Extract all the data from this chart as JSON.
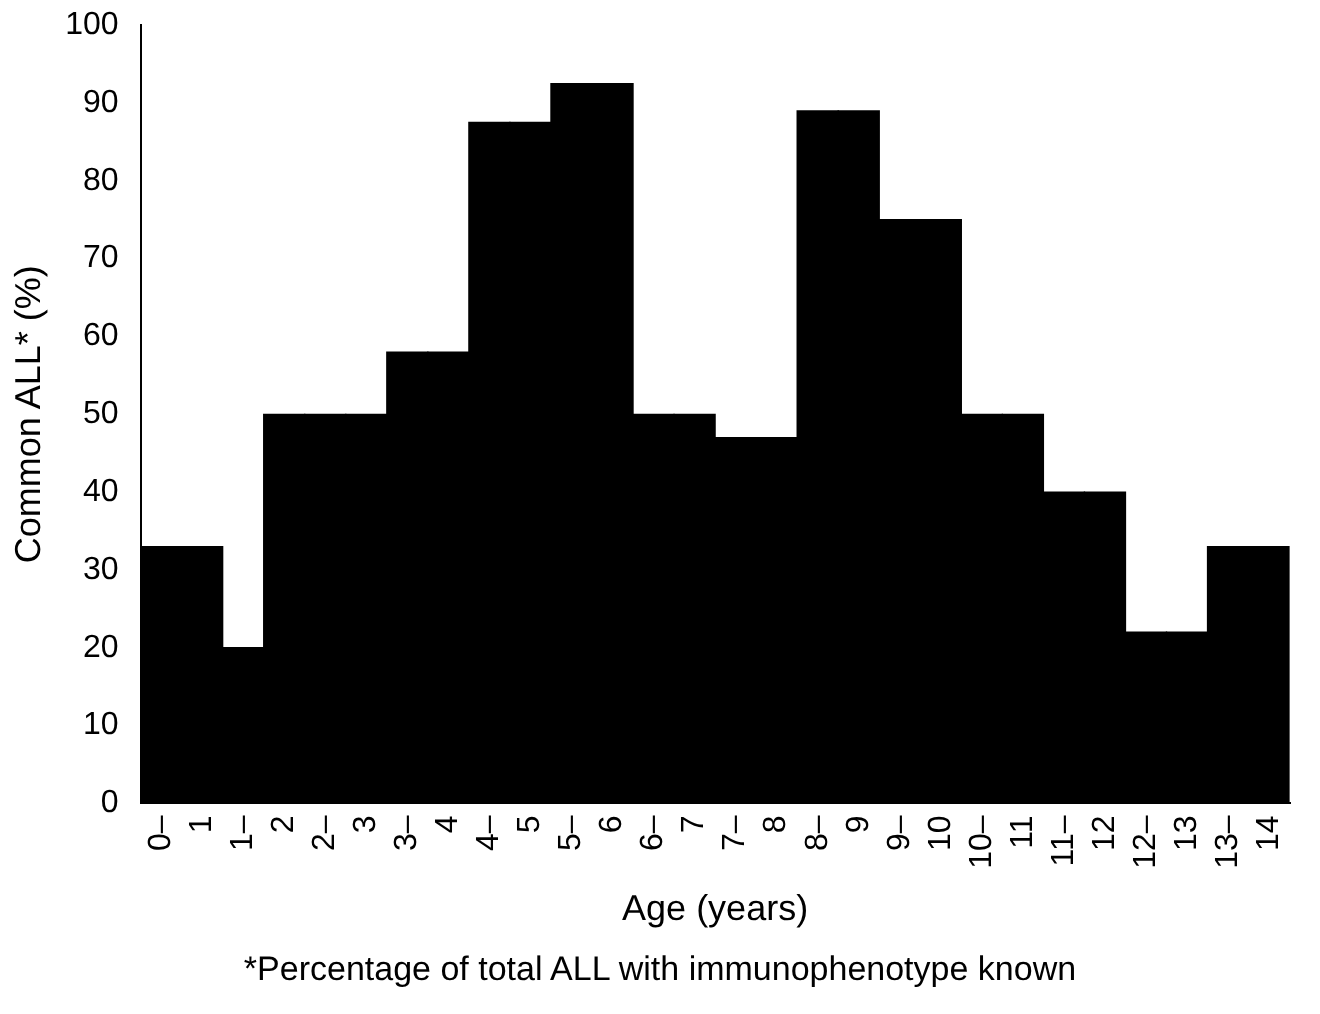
{
  "chart_data": {
    "type": "bar",
    "xlabel": "Age (years)",
    "ylabel": "Common ALL* (%)",
    "categories": [
      "0–",
      "1",
      "1–",
      "2",
      "2–",
      "3",
      "3–",
      "4",
      "4–",
      "5",
      "5–",
      "6",
      "6–",
      "7",
      "7–",
      "8",
      "8–",
      "9",
      "9–",
      "10",
      "10–",
      "11",
      "11–",
      "12",
      "12–",
      "13",
      "13–",
      "14"
    ],
    "values": [
      33,
      33,
      20,
      50,
      50,
      50,
      58,
      58,
      87.5,
      87.5,
      92.5,
      92.5,
      50,
      50,
      47,
      47,
      89,
      89,
      75,
      75,
      50,
      50,
      40,
      40,
      22,
      22,
      33,
      33
    ],
    "color": "#000000",
    "ylim": [
      0,
      100
    ],
    "yticks": [
      0,
      10,
      20,
      30,
      40,
      50,
      60,
      70,
      80,
      90,
      100
    ],
    "grid": false,
    "legend": false,
    "annotations": [
      "*Percentage of total ALL with immunophenotype known"
    ]
  }
}
